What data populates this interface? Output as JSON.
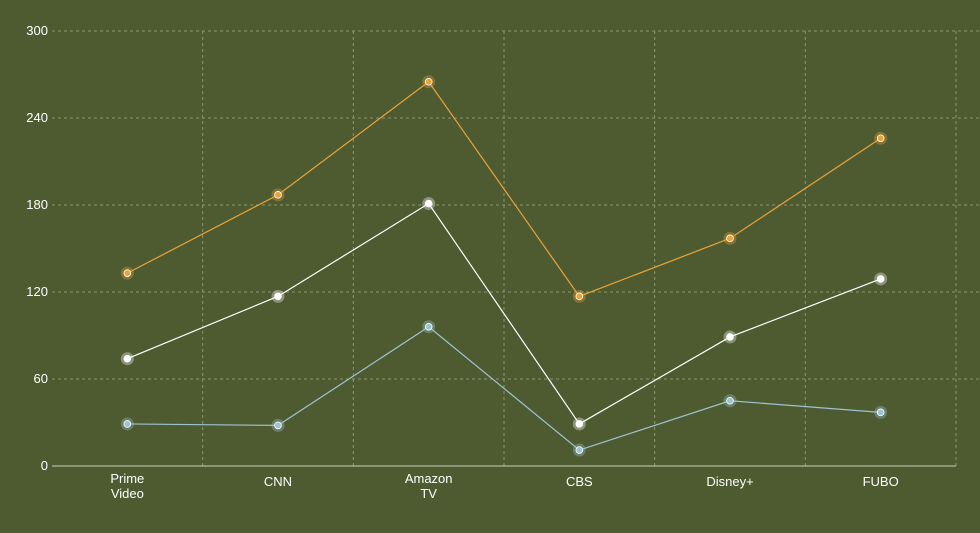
{
  "chart_data": {
    "type": "line",
    "title": "",
    "xlabel": "",
    "ylabel": "",
    "categories": [
      [
        "Prime",
        "Video"
      ],
      [
        "CNN"
      ],
      [
        "Amazon",
        "TV"
      ],
      [
        "CBS"
      ],
      [
        "Disney+"
      ],
      [
        "FUBO"
      ]
    ],
    "ylim": [
      0,
      300
    ],
    "yticks": [
      "0",
      "60",
      "120",
      "180",
      "240",
      "300"
    ],
    "grid": true,
    "legend": "none",
    "series": [
      {
        "color": "#e8a33a",
        "values": [
          133,
          187,
          265,
          117,
          157,
          226
        ]
      },
      {
        "color": "#ffffff",
        "values": [
          74,
          117,
          181,
          29,
          89,
          129
        ]
      },
      {
        "color": "#9ec3d0",
        "values": [
          29,
          28,
          96,
          11,
          45,
          37
        ]
      }
    ],
    "colors": {
      "background": "#4e5b31",
      "grid": "#8a9670",
      "axis": "#c9d0b8",
      "text": "#ffffff"
    }
  }
}
